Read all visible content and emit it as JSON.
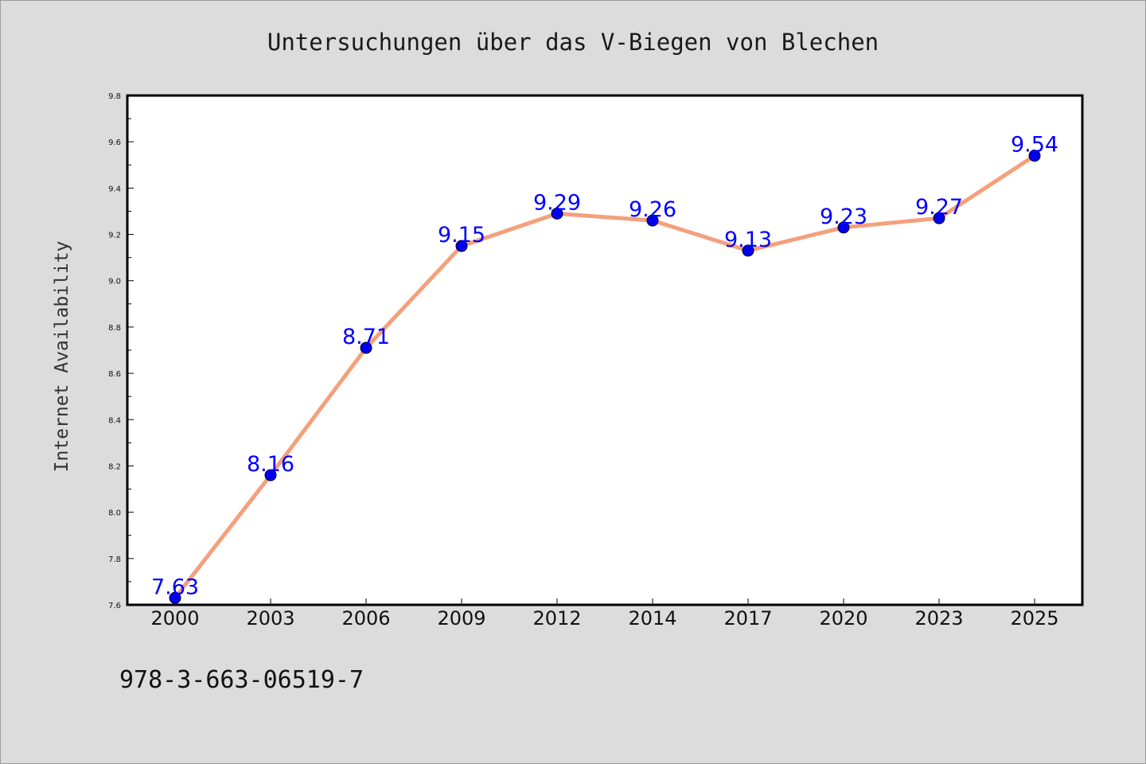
{
  "chart_data": {
    "type": "line",
    "title": "Untersuchungen über das V-Biegen von Blechen",
    "ylabel": "Internet Availability",
    "xlabel": "",
    "categories": [
      "2000",
      "2003",
      "2006",
      "2009",
      "2012",
      "2014",
      "2017",
      "2020",
      "2023",
      "2025"
    ],
    "values": [
      7.63,
      8.16,
      8.71,
      9.15,
      9.29,
      9.26,
      9.13,
      9.23,
      9.27,
      9.54
    ],
    "data_labels": [
      "7.63",
      "8.16",
      "8.71",
      "9.15",
      "9.29",
      "9.26",
      "9.13",
      "9.23",
      "9.27",
      "9.54"
    ],
    "ylim": [
      7.6,
      9.8
    ],
    "yticks": [
      "7.6",
      "7.8",
      "8.0",
      "8.2",
      "8.4",
      "8.6",
      "8.8",
      "9.0",
      "9.2",
      "9.4",
      "9.6",
      "9.8"
    ],
    "grid": false,
    "legend": "none",
    "colors": {
      "line": "#f4a07c",
      "marker": "#0000ee",
      "data_label": "#0000ff",
      "background": "#dcdcdc",
      "plot_background": "#ffffff"
    }
  },
  "footer": {
    "isbn": "978-3-663-06519-7"
  }
}
